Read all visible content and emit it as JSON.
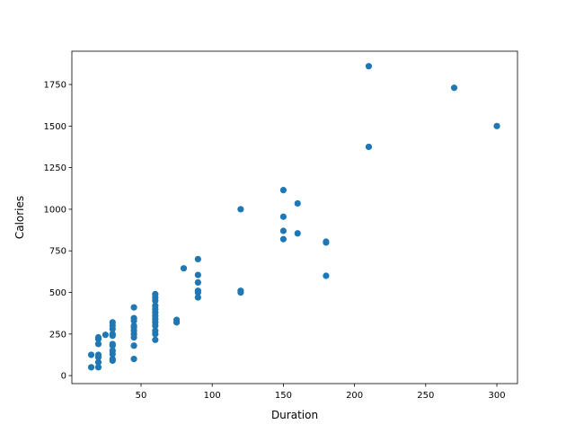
{
  "chart_data": {
    "type": "scatter",
    "title": "",
    "xlabel": "Duration",
    "ylabel": "Calories",
    "xlim": [
      1.4,
      314.5
    ],
    "ylim": [
      -48,
      1950
    ],
    "xticks": [
      50,
      100,
      150,
      200,
      250,
      300
    ],
    "yticks": [
      0,
      250,
      500,
      750,
      1000,
      1250,
      1500,
      1750
    ],
    "grid": false,
    "color": "#1f77b4",
    "points": [
      [
        15,
        50
      ],
      [
        15,
        125
      ],
      [
        20,
        50
      ],
      [
        20,
        80
      ],
      [
        20,
        110
      ],
      [
        20,
        125
      ],
      [
        20,
        190
      ],
      [
        20,
        220
      ],
      [
        20,
        230
      ],
      [
        25,
        245
      ],
      [
        30,
        90
      ],
      [
        30,
        100
      ],
      [
        30,
        130
      ],
      [
        30,
        150
      ],
      [
        30,
        180
      ],
      [
        30,
        190
      ],
      [
        30,
        240
      ],
      [
        30,
        250
      ],
      [
        30,
        280
      ],
      [
        30,
        300
      ],
      [
        30,
        320
      ],
      [
        45,
        100
      ],
      [
        45,
        180
      ],
      [
        45,
        230
      ],
      [
        45,
        250
      ],
      [
        45,
        270
      ],
      [
        45,
        290
      ],
      [
        45,
        300
      ],
      [
        45,
        330
      ],
      [
        45,
        345
      ],
      [
        45,
        410
      ],
      [
        60,
        215
      ],
      [
        60,
        250
      ],
      [
        60,
        270
      ],
      [
        60,
        300
      ],
      [
        60,
        320
      ],
      [
        60,
        340
      ],
      [
        60,
        360
      ],
      [
        60,
        380
      ],
      [
        60,
        400
      ],
      [
        60,
        420
      ],
      [
        60,
        450
      ],
      [
        60,
        470
      ],
      [
        60,
        490
      ],
      [
        75,
        320
      ],
      [
        75,
        335
      ],
      [
        80,
        645
      ],
      [
        90,
        470
      ],
      [
        90,
        500
      ],
      [
        90,
        510
      ],
      [
        90,
        560
      ],
      [
        90,
        605
      ],
      [
        90,
        700
      ],
      [
        120,
        500
      ],
      [
        120,
        510
      ],
      [
        120,
        1000
      ],
      [
        150,
        820
      ],
      [
        150,
        870
      ],
      [
        150,
        955
      ],
      [
        150,
        1115
      ],
      [
        160,
        855
      ],
      [
        160,
        1035
      ],
      [
        180,
        600
      ],
      [
        180,
        800
      ],
      [
        180,
        805
      ],
      [
        210,
        1375
      ],
      [
        210,
        1860
      ],
      [
        270,
        1730
      ],
      [
        300,
        1500
      ]
    ]
  }
}
